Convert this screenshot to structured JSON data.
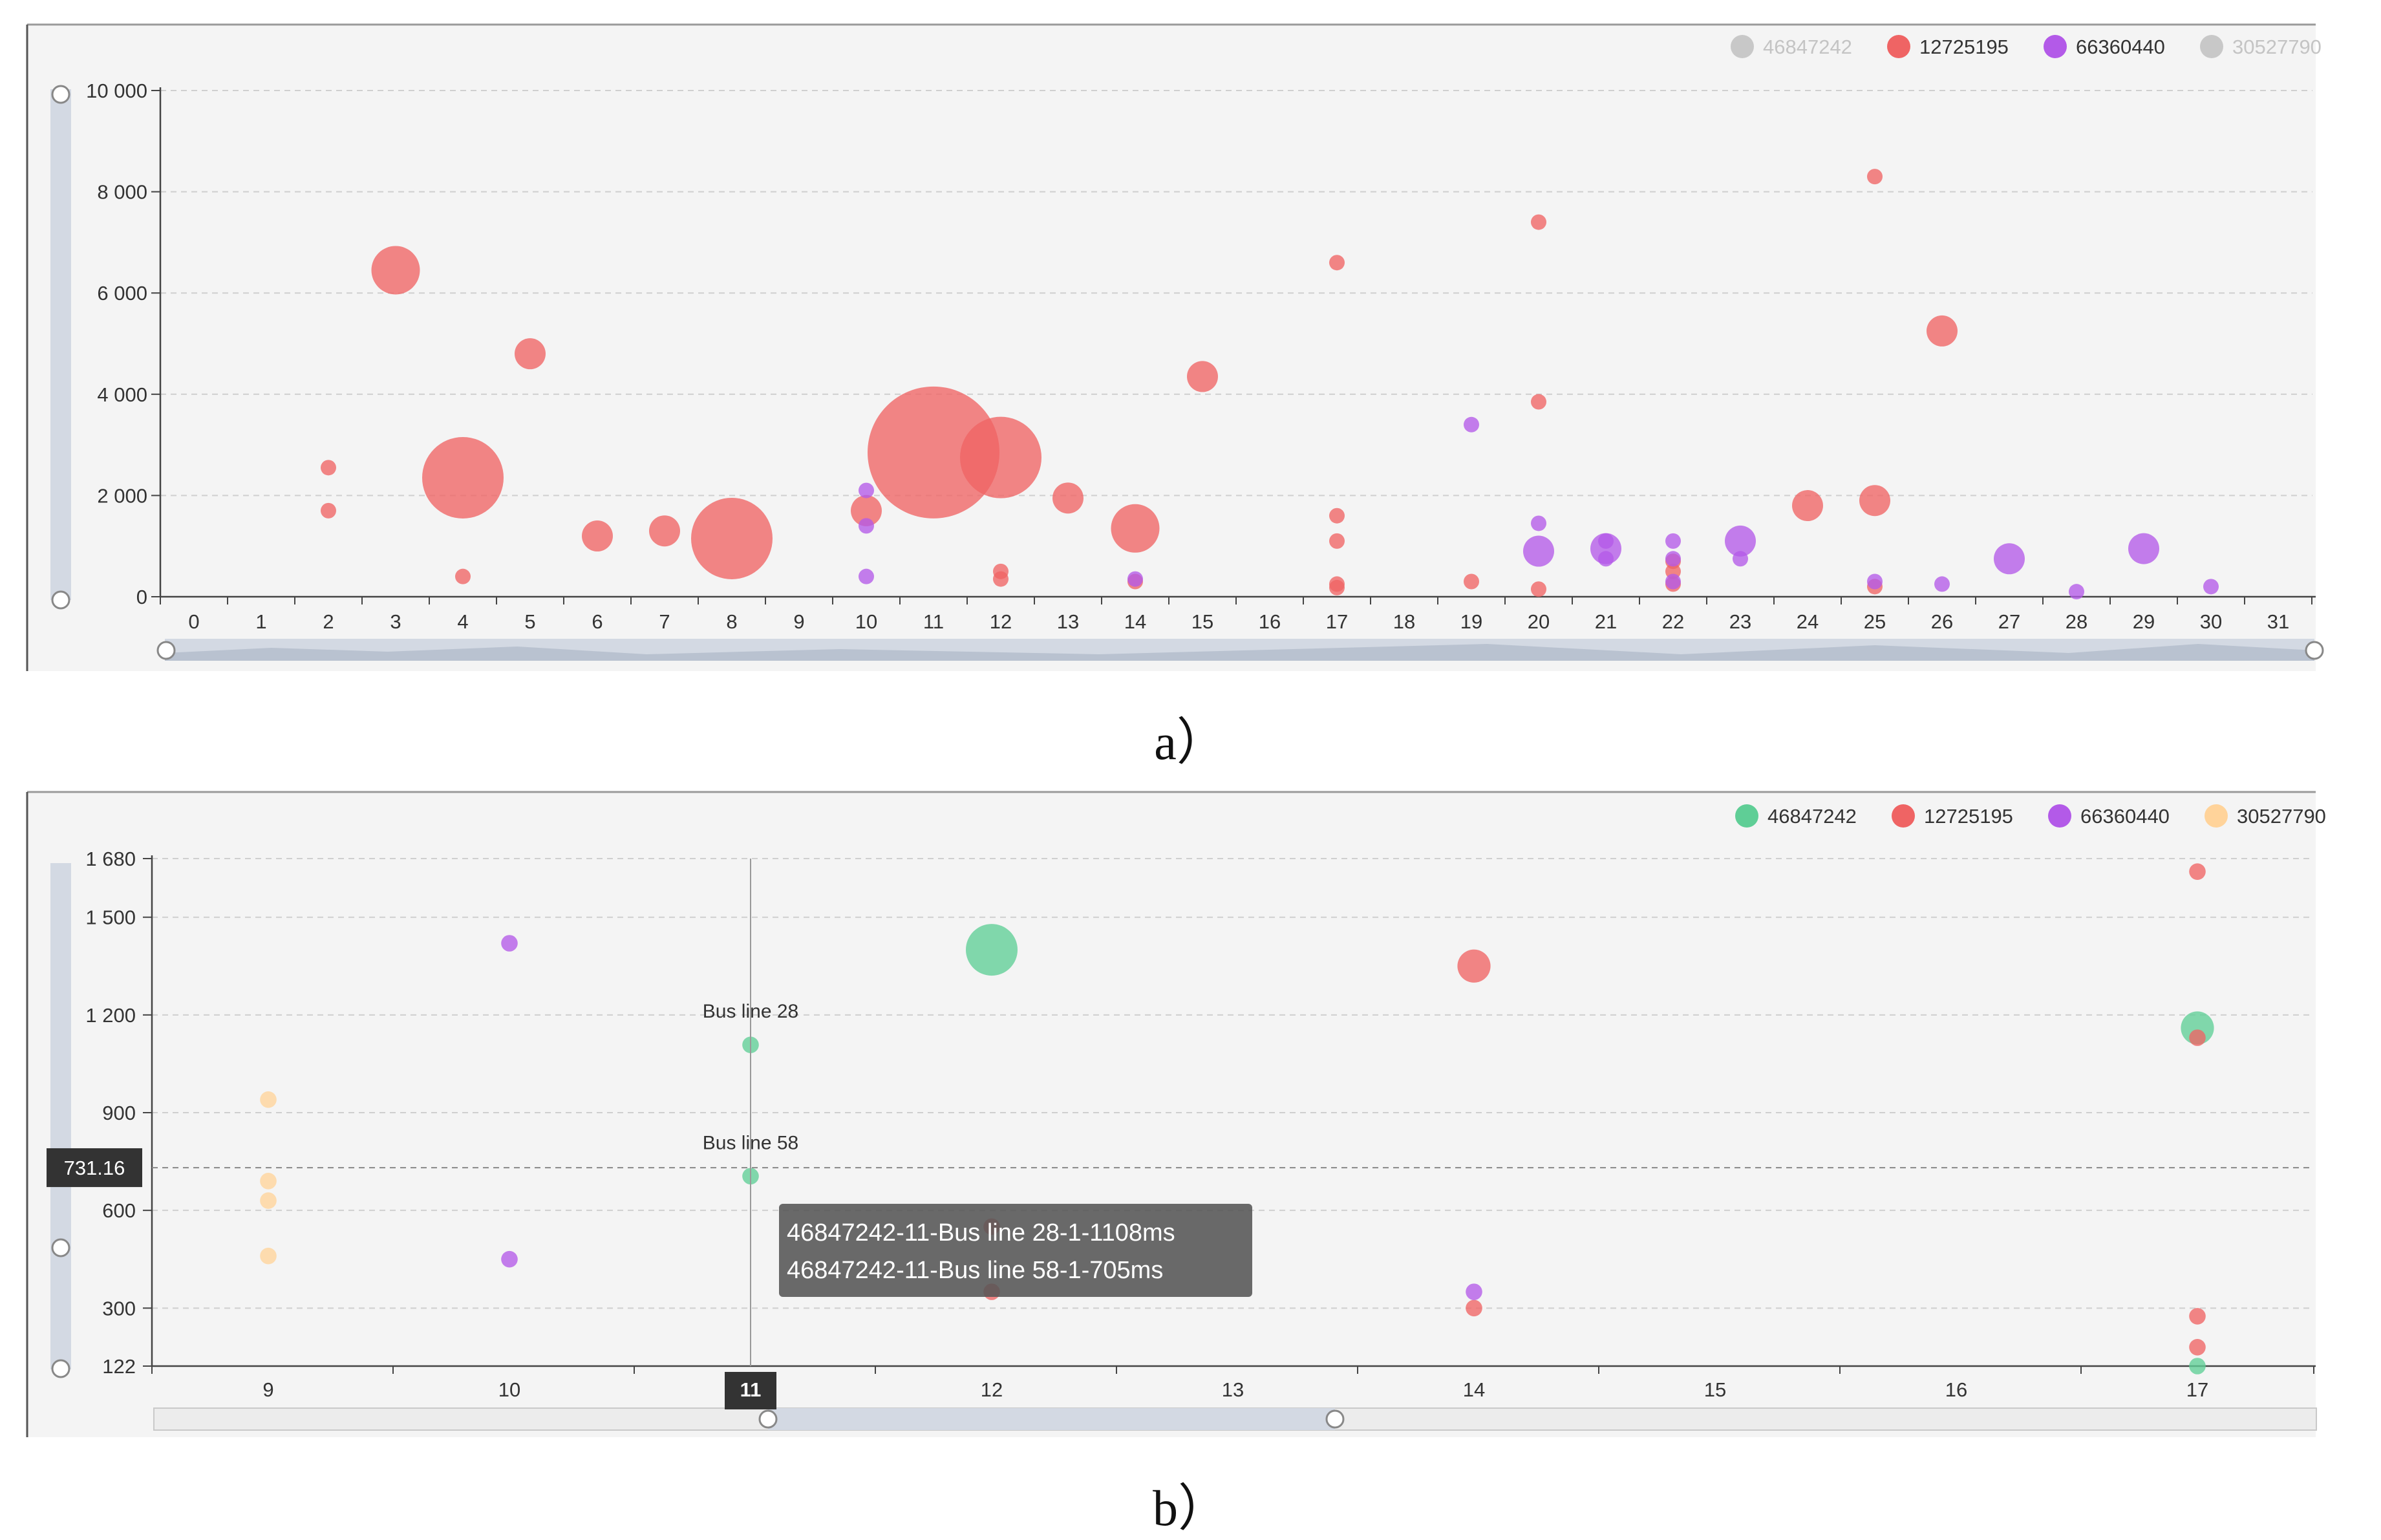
{
  "captions": {
    "a": "a）",
    "b": "b）"
  },
  "colors": {
    "s46847242": "#5fce96",
    "s12725195": "#ef6464",
    "s66360440": "#b35ae8",
    "s30527790": "#ffd39a",
    "inactive": "#c8c8c8"
  },
  "chart_data": [
    {
      "type": "scatter",
      "variant": "bubble",
      "title": "",
      "xlabel": "",
      "ylabel": "",
      "x_categories": [
        "0",
        "1",
        "2",
        "3",
        "4",
        "5",
        "6",
        "7",
        "8",
        "9",
        "10",
        "11",
        "12",
        "13",
        "14",
        "15",
        "16",
        "17",
        "18",
        "19",
        "20",
        "21",
        "22",
        "23",
        "24",
        "25",
        "26",
        "27",
        "28",
        "29",
        "30",
        "31"
      ],
      "y_ticks": [
        "0",
        "2 000",
        "4 000",
        "6 000",
        "8 000",
        "10 000"
      ],
      "ylim": [
        0,
        10000
      ],
      "grid": true,
      "legend_position": "top-right",
      "legend": [
        {
          "name": "46847242",
          "active": false
        },
        {
          "name": "12725195",
          "active": true
        },
        {
          "name": "66360440",
          "active": true
        },
        {
          "name": "30527790",
          "active": false
        }
      ],
      "series": [
        {
          "name": "12725195",
          "color": "#ef6464",
          "points": [
            [
              2,
              2550,
              8
            ],
            [
              2,
              1700,
              8
            ],
            [
              3,
              6450,
              25
            ],
            [
              4,
              2350,
              42
            ],
            [
              4,
              400,
              8
            ],
            [
              5,
              4800,
              16
            ],
            [
              6,
              1200,
              16
            ],
            [
              7,
              1300,
              16
            ],
            [
              8,
              1150,
              42
            ],
            [
              10,
              1700,
              16
            ],
            [
              11,
              2850,
              68
            ],
            [
              12,
              2750,
              42
            ],
            [
              12,
              500,
              8
            ],
            [
              12,
              350,
              8
            ],
            [
              13,
              1950,
              16
            ],
            [
              14,
              1350,
              25
            ],
            [
              14,
              300,
              8
            ],
            [
              15,
              4350,
              16
            ],
            [
              17,
              6600,
              8
            ],
            [
              17,
              1600,
              8
            ],
            [
              17,
              1100,
              8
            ],
            [
              17,
              250,
              8
            ],
            [
              17,
              180,
              8
            ],
            [
              19,
              300,
              8
            ],
            [
              20,
              7400,
              8
            ],
            [
              20,
              3850,
              8
            ],
            [
              20,
              150,
              8
            ],
            [
              22,
              700,
              8
            ],
            [
              22,
              500,
              8
            ],
            [
              22,
              250,
              8
            ],
            [
              24,
              1800,
              16
            ],
            [
              25,
              8300,
              8
            ],
            [
              25,
              1900,
              16
            ],
            [
              25,
              200,
              8
            ],
            [
              26,
              5250,
              16
            ]
          ]
        },
        {
          "name": "66360440",
          "color": "#b35ae8",
          "points": [
            [
              10,
              2100,
              8
            ],
            [
              10,
              1400,
              8
            ],
            [
              10,
              400,
              8
            ],
            [
              14,
              350,
              8
            ],
            [
              19,
              3400,
              8
            ],
            [
              20,
              1450,
              8
            ],
            [
              20,
              900,
              16
            ],
            [
              21,
              1100,
              8
            ],
            [
              21,
              950,
              16
            ],
            [
              21,
              750,
              8
            ],
            [
              22,
              1100,
              8
            ],
            [
              22,
              750,
              8
            ],
            [
              22,
              300,
              8
            ],
            [
              23,
              1100,
              16
            ],
            [
              23,
              750,
              8
            ],
            [
              25,
              300,
              8
            ],
            [
              26,
              250,
              8
            ],
            [
              27,
              750,
              16
            ],
            [
              28,
              100,
              8
            ],
            [
              29,
              950,
              16
            ],
            [
              30,
              200,
              8
            ]
          ]
        }
      ]
    },
    {
      "type": "scatter",
      "variant": "bubble",
      "title": "",
      "xlabel": "",
      "ylabel": "",
      "x_categories": [
        "9",
        "10",
        "11",
        "12",
        "13",
        "14",
        "15",
        "16",
        "17"
      ],
      "y_ticks": [
        "122",
        "300",
        "600",
        "900",
        "1 200",
        "1 500",
        "1 680"
      ],
      "ylim": [
        122,
        1680
      ],
      "grid": true,
      "legend_position": "top-right",
      "legend": [
        {
          "name": "46847242",
          "active": true
        },
        {
          "name": "12725195",
          "active": true
        },
        {
          "name": "66360440",
          "active": true
        },
        {
          "name": "30527790",
          "active": true
        }
      ],
      "series": [
        {
          "name": "46847242",
          "color": "#5fce96",
          "points": [
            [
              11,
              1108,
              8
            ],
            [
              11,
              705,
              8
            ],
            [
              12,
              1400,
              25
            ],
            [
              17,
              1160,
              16
            ],
            [
              17,
              122,
              8
            ]
          ]
        },
        {
          "name": "12725195",
          "color": "#ef6464",
          "points": [
            [
              12,
              550,
              8
            ],
            [
              12,
              350,
              8
            ],
            [
              14,
              1350,
              16
            ],
            [
              14,
              300,
              8
            ],
            [
              17,
              1640,
              8
            ],
            [
              17,
              1130,
              8
            ],
            [
              17,
              275,
              8
            ],
            [
              17,
              180,
              8
            ]
          ]
        },
        {
          "name": "66360440",
          "color": "#b35ae8",
          "points": [
            [
              10,
              1420,
              8
            ],
            [
              10,
              450,
              8
            ],
            [
              14,
              350,
              8
            ]
          ]
        },
        {
          "name": "30527790",
          "color": "#ffd39a",
          "points": [
            [
              9,
              940,
              8
            ],
            [
              9,
              690,
              8
            ],
            [
              9,
              630,
              8
            ],
            [
              9,
              460,
              8
            ]
          ]
        }
      ],
      "annotations": [
        "Bus line 28",
        "Bus line 58"
      ],
      "crosshair": {
        "x_label": "11",
        "y_label": "731.16",
        "y_value": 731.16
      },
      "tooltip": [
        "46847242-11-Bus line 28-1-1108ms",
        "46847242-11-Bus line 58-1-705ms"
      ]
    }
  ]
}
